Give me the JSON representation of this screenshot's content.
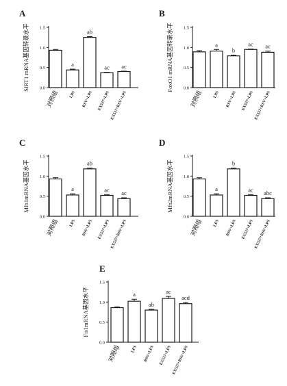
{
  "colors": {
    "axis": "#1a1a1a",
    "bar_fill": "#ffffff",
    "bar_stroke": "#1a1a1a",
    "background": "#ffffff"
  },
  "chart_data": [
    {
      "panel": "A",
      "type": "bar",
      "ylabel": "SIRT1 mRNA基因转录水平",
      "categories": [
        "对照组",
        "LPS",
        "RSV+LPS",
        "EX527+LPS",
        "EX527+RSV+LPS"
      ],
      "values": [
        0.93,
        0.44,
        1.25,
        0.37,
        0.4
      ],
      "errors": [
        0.02,
        0.02,
        0.02,
        0.01,
        0.01
      ],
      "annotations": [
        "",
        "a",
        "ab",
        "ac",
        "ac"
      ],
      "yticks": [
        "0.0",
        "0.5",
        "1.0",
        "1.5"
      ],
      "ylim": [
        0,
        1.5
      ]
    },
    {
      "panel": "B",
      "type": "bar",
      "ylabel": "FoxO1 mRNA基因转录水平",
      "categories": [
        "对照组",
        "LPS",
        "RSV+LPS",
        "EX527+LPS",
        "EX527+RSV+LPS"
      ],
      "values": [
        0.89,
        0.91,
        0.79,
        0.95,
        0.88
      ],
      "errors": [
        0.03,
        0.04,
        0.02,
        0.01,
        0.03
      ],
      "annotations": [
        "",
        "a",
        "b",
        "ac",
        "ac"
      ],
      "yticks": [
        "0.0",
        "0.5",
        "1.0",
        "1.5"
      ],
      "ylim": [
        0,
        1.5
      ]
    },
    {
      "panel": "C",
      "type": "bar",
      "ylabel": "Mfn1mRNA基因水平",
      "categories": [
        "对照组",
        "LPS",
        "RSV+LPS",
        "EX527+LPS",
        "EX527+RSV+LPS"
      ],
      "values": [
        0.93,
        0.53,
        1.18,
        0.52,
        0.44
      ],
      "errors": [
        0.03,
        0.03,
        0.02,
        0.02,
        0.02
      ],
      "annotations": [
        "",
        "a",
        "ab",
        "ac",
        "ac"
      ],
      "yticks": [
        "0.0",
        "0.5",
        "1.0",
        "1.5"
      ],
      "ylim": [
        0,
        1.5
      ]
    },
    {
      "panel": "D",
      "type": "bar",
      "ylabel": "Mfn2mRNA基因水平",
      "categories": [
        "对照组",
        "LPS",
        "RSV+LPS",
        "EX527+LPS",
        "EX527+RSV+LPS"
      ],
      "values": [
        0.93,
        0.53,
        1.18,
        0.52,
        0.44
      ],
      "errors": [
        0.03,
        0.03,
        0.02,
        0.02,
        0.02
      ],
      "annotations": [
        "",
        "a",
        "b",
        "ac",
        "abc"
      ],
      "yticks": [
        "0.0",
        "0.5",
        "1.0",
        "1.5"
      ],
      "ylim": [
        0,
        1.5
      ]
    },
    {
      "panel": "E",
      "type": "bar",
      "ylabel": "Fis1mRNA基因水平",
      "categories": [
        "对照组",
        "LPS",
        "RSV+LPS",
        "EX527+LPS",
        "EX527+RSV+LPS"
      ],
      "values": [
        0.86,
        1.02,
        0.8,
        1.09,
        0.96
      ],
      "errors": [
        0.02,
        0.05,
        0.02,
        0.05,
        0.03
      ],
      "annotations": [
        "",
        "a",
        "ab",
        "ac",
        "acd"
      ],
      "yticks": [
        "0.0",
        "0.5",
        "1.0",
        "1.5"
      ],
      "ylim": [
        0,
        1.5
      ]
    }
  ]
}
